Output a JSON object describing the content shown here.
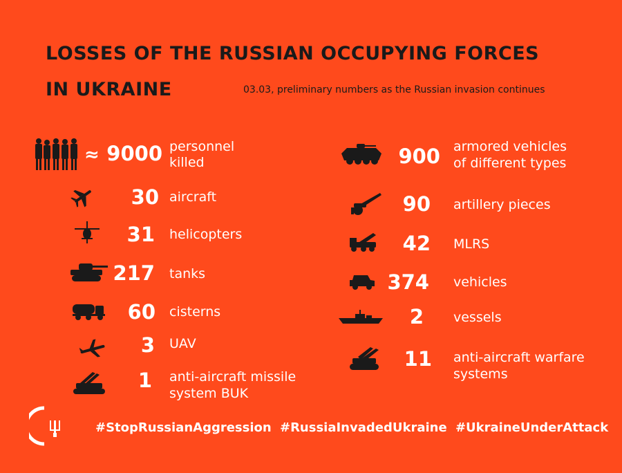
{
  "title_line1": "LOSSES OF THE RUSSIAN OCCUPYING FORCES",
  "title_line2": "IN UKRAINE",
  "subtitle": "03.03, preliminary numbers as the Russian invasion continues",
  "colors": {
    "background": "#ff4a1c",
    "text_dark": "#1a1a1a",
    "text_light": "#ffffff"
  },
  "left_items": [
    {
      "prefix": "≈",
      "value": "9000",
      "label_line1": "personnel",
      "label_line2": "killed",
      "icon": "soldiers-icon"
    },
    {
      "value": "30",
      "label_line1": "aircraft",
      "label_line2": "",
      "icon": "airplane-icon"
    },
    {
      "value": "31",
      "label_line1": "helicopters",
      "label_line2": "",
      "icon": "helicopter-icon"
    },
    {
      "value": "217",
      "label_line1": "tanks",
      "label_line2": "",
      "icon": "tank-icon"
    },
    {
      "value": "60",
      "label_line1": "cisterns",
      "label_line2": "",
      "icon": "cistern-truck-icon"
    },
    {
      "value": "3",
      "label_line1": "UAV",
      "label_line2": "",
      "icon": "drone-icon"
    },
    {
      "value": "1",
      "label_line1": "anti-aircraft missile",
      "label_line2": "system BUK",
      "icon": "missile-launcher-icon"
    }
  ],
  "right_items": [
    {
      "value": "900",
      "label_line1": "armored vehicles",
      "label_line2": "of different types",
      "icon": "armored-vehicle-icon"
    },
    {
      "value": "90",
      "label_line1": "artillery pieces",
      "label_line2": "",
      "icon": "artillery-icon"
    },
    {
      "value": "42",
      "label_line1": "MLRS",
      "label_line2": "",
      "icon": "mlrs-icon"
    },
    {
      "value": "374",
      "label_line1": "vehicles",
      "label_line2": "",
      "icon": "jeep-icon"
    },
    {
      "value": "2",
      "label_line1": "vessels",
      "label_line2": "",
      "icon": "warship-icon"
    },
    {
      "value": "11",
      "label_line1": "anti-aircraft warfare",
      "label_line2": "systems",
      "icon": "anti-aircraft-icon"
    }
  ],
  "hashtags": [
    "#StopRussianAggression",
    "#RussiaInvadedUkraine",
    "#UkraineUnderAttack"
  ],
  "logo_icon": "ukraine-trident-logo-icon"
}
